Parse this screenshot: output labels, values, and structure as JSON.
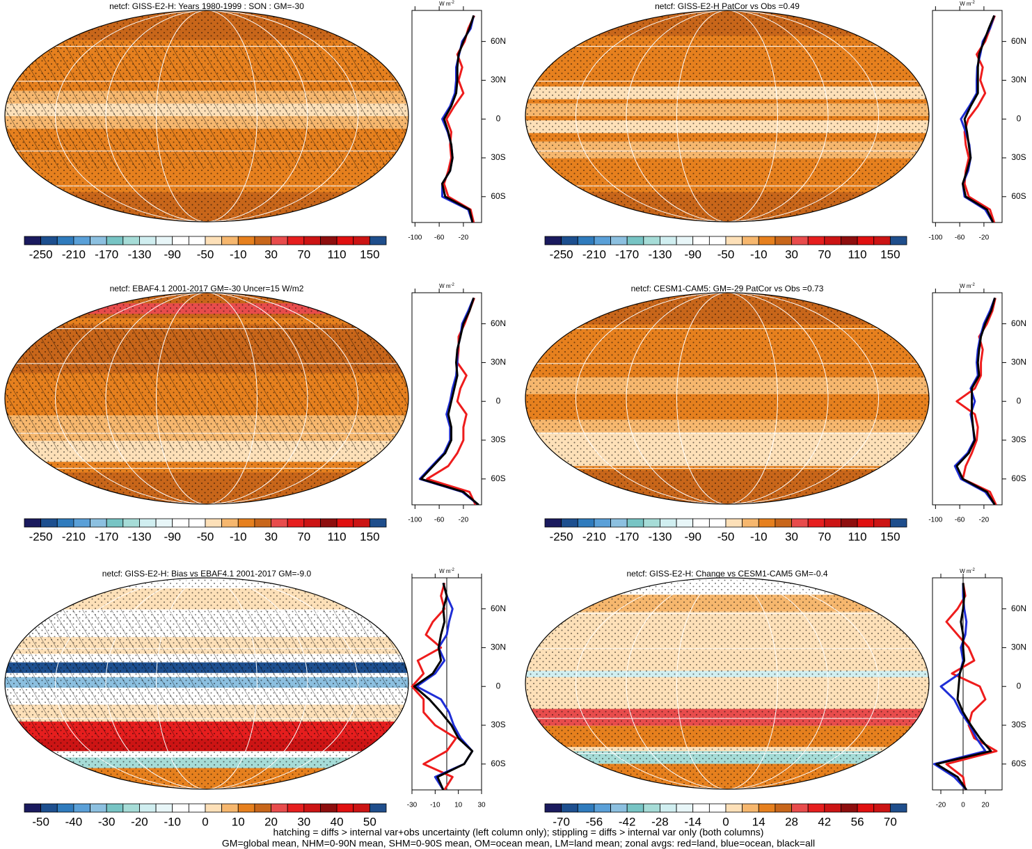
{
  "chart_data": [
    {
      "type": "map",
      "title": "netcf: GISS-E2-H: Years 1980-1999 : SON : GM=-30",
      "colorbar": {
        "lim": [
          -270,
          170
        ],
        "ticks": [
          -250,
          -210,
          -170,
          -130,
          -90,
          -50,
          -10,
          30,
          70,
          110,
          150
        ],
        "colors": [
          "#1a1a5e",
          "#1d4f8f",
          "#2f7bbd",
          "#5aa0d8",
          "#8cc0e0",
          "#77c4c4",
          "#a6dcd7",
          "#d0eef0",
          "#e8f6f8",
          "#ffffff",
          "#ffffff",
          "#fde0b8",
          "#f6b76e",
          "#e6801e",
          "#c8661a",
          "#e84c4c",
          "#e61e1e",
          "#cc1414",
          "#8e0e0e",
          "#e01010",
          "#cc1414",
          "#1f4e8c"
        ]
      },
      "zonal_mean": {
        "type": "line",
        "xlabel": "W m",
        "xlabel_sup": "-2",
        "xlim": [
          -105,
          10
        ],
        "xticks": [
          -100,
          -60,
          -20
        ],
        "ylim": [
          -80,
          84
        ],
        "yticks": [
          {
            "value": 60,
            "label": "60N"
          },
          {
            "value": 30,
            "label": "30N"
          },
          0,
          {
            "value": -30,
            "label": "30S"
          },
          {
            "value": -60,
            "label": "60S"
          }
        ],
        "y": [
          -80,
          -70,
          -60,
          -50,
          -40,
          -30,
          -20,
          -10,
          0,
          10,
          20,
          30,
          40,
          50,
          60,
          70,
          80
        ],
        "series": [
          {
            "name": "land",
            "color": "#ee1c1c",
            "values": [
              -3,
              -8,
              -45,
              -52,
              -45,
              -40,
              -42,
              -40,
              -48,
              -35,
              -20,
              -28,
              -22,
              -30,
              -18,
              -12,
              -2
            ]
          },
          {
            "name": "ocean",
            "color": "#1f2ed6",
            "values": [
              -5,
              -12,
              -55,
              -55,
              -42,
              -38,
              -40,
              -46,
              -55,
              -42,
              -34,
              -32,
              -32,
              -27,
              -22,
              -8,
              -3
            ]
          },
          {
            "name": "all",
            "color": "#000000",
            "values": [
              -5,
              -10,
              -50,
              -55,
              -42,
              -38,
              -40,
              -45,
              -52,
              -40,
              -32,
              -30,
              -30,
              -28,
              -20,
              -10,
              -3
            ]
          }
        ]
      }
    },
    {
      "type": "map",
      "title": "netcf: GISS-E2-H PatCor vs Obs =0.49",
      "colorbar": {
        "lim": [
          -270,
          170
        ],
        "ticks": [
          -250,
          -210,
          -170,
          -130,
          -90,
          -50,
          -10,
          30,
          70,
          110,
          150
        ],
        "colors": [
          "#1a1a5e",
          "#1d4f8f",
          "#2f7bbd",
          "#5aa0d8",
          "#8cc0e0",
          "#77c4c4",
          "#a6dcd7",
          "#d0eef0",
          "#e8f6f8",
          "#ffffff",
          "#ffffff",
          "#fde0b8",
          "#f6b76e",
          "#e6801e",
          "#c8661a",
          "#e84c4c",
          "#e61e1e",
          "#cc1414",
          "#8e0e0e",
          "#e01010",
          "#cc1414",
          "#1f4e8c"
        ]
      },
      "zonal_mean": {
        "type": "line",
        "xlabel": "W m",
        "xlabel_sup": "-2",
        "xlim": [
          -105,
          10
        ],
        "xticks": [
          -100,
          -60,
          -20
        ],
        "ylim": [
          -80,
          84
        ],
        "yticks": [
          {
            "value": 60,
            "label": "60N"
          },
          {
            "value": 30,
            "label": "30N"
          },
          0,
          {
            "value": -30,
            "label": "30S"
          },
          {
            "value": -60,
            "label": "60S"
          }
        ],
        "y": [
          -80,
          -70,
          -60,
          -50,
          -40,
          -30,
          -20,
          -10,
          0,
          10,
          20,
          30,
          40,
          50,
          60,
          70,
          80
        ],
        "series": [
          {
            "name": "land",
            "color": "#ee1c1c",
            "values": [
              -3,
              -10,
              -45,
              -52,
              -50,
              -45,
              -50,
              -52,
              -46,
              -30,
              -18,
              -26,
              -22,
              -32,
              -18,
              -10,
              -2
            ]
          },
          {
            "name": "ocean",
            "color": "#1f2ed6",
            "values": [
              -5,
              -18,
              -52,
              -55,
              -46,
              -42,
              -44,
              -50,
              -58,
              -44,
              -32,
              -32,
              -31,
              -26,
              -22,
              -10,
              -3
            ]
          },
          {
            "name": "all",
            "color": "#000000",
            "values": [
              -5,
              -15,
              -50,
              -55,
              -48,
              -42,
              -45,
              -48,
              -52,
              -42,
              -30,
              -30,
              -30,
              -28,
              -20,
              -12,
              -3
            ]
          }
        ]
      }
    },
    {
      "type": "map",
      "title": "netcf: EBAF4.1 2001-2017 GM=-30 Uncer=15 W/m2",
      "colorbar": {
        "lim": [
          -270,
          170
        ],
        "ticks": [
          -250,
          -210,
          -170,
          -130,
          -90,
          -50,
          -10,
          30,
          70,
          110,
          150
        ],
        "colors": [
          "#1a1a5e",
          "#1d4f8f",
          "#2f7bbd",
          "#5aa0d8",
          "#8cc0e0",
          "#77c4c4",
          "#a6dcd7",
          "#d0eef0",
          "#e8f6f8",
          "#ffffff",
          "#ffffff",
          "#fde0b8",
          "#f6b76e",
          "#e6801e",
          "#c8661a",
          "#e84c4c",
          "#e61e1e",
          "#cc1414",
          "#8e0e0e",
          "#e01010",
          "#cc1414",
          "#1f4e8c"
        ]
      },
      "zonal_mean": {
        "type": "line",
        "xlabel": "W m",
        "xlabel_sup": "-2",
        "xlim": [
          -105,
          10
        ],
        "xticks": [
          -100,
          -60,
          -20
        ],
        "ylim": [
          -80,
          84
        ],
        "yticks": [
          {
            "value": 60,
            "label": "60N"
          },
          {
            "value": 30,
            "label": "30N"
          },
          0,
          {
            "value": -30,
            "label": "30S"
          },
          {
            "value": -60,
            "label": "60S"
          }
        ],
        "y": [
          -80,
          -70,
          -60,
          -50,
          -40,
          -30,
          -20,
          -10,
          0,
          10,
          20,
          30,
          40,
          50,
          60,
          70,
          80
        ],
        "series": [
          {
            "name": "land",
            "color": "#ee1c1c",
            "values": [
              0,
              -10,
              -80,
              -45,
              -30,
              -20,
              -20,
              -15,
              -30,
              -25,
              -15,
              -30,
              -28,
              -28,
              -18,
              -10,
              -2
            ]
          },
          {
            "name": "ocean",
            "color": "#1f2ed6",
            "values": [
              5,
              -22,
              -92,
              -72,
              -52,
              -42,
              -42,
              -48,
              -42,
              -38,
              -32,
              -30,
              -30,
              -25,
              -22,
              -12,
              -3
            ]
          },
          {
            "name": "all",
            "color": "#000000",
            "values": [
              5,
              -20,
              -90,
              -70,
              -50,
              -40,
              -40,
              -45,
              -40,
              -35,
              -30,
              -32,
              -30,
              -25,
              -20,
              -10,
              -3
            ]
          }
        ]
      }
    },
    {
      "type": "map",
      "title": "netcf: CESM1-CAM5: GM=-29 PatCor vs Obs =0.73",
      "colorbar": {
        "lim": [
          -270,
          170
        ],
        "ticks": [
          -250,
          -210,
          -170,
          -130,
          -90,
          -50,
          -10,
          30,
          70,
          110,
          150
        ],
        "colors": [
          "#1a1a5e",
          "#1d4f8f",
          "#2f7bbd",
          "#5aa0d8",
          "#8cc0e0",
          "#77c4c4",
          "#a6dcd7",
          "#d0eef0",
          "#e8f6f8",
          "#ffffff",
          "#ffffff",
          "#fde0b8",
          "#f6b76e",
          "#e6801e",
          "#c8661a",
          "#e84c4c",
          "#e61e1e",
          "#cc1414",
          "#8e0e0e",
          "#e01010",
          "#cc1414",
          "#1f4e8c"
        ]
      },
      "zonal_mean": {
        "type": "line",
        "xlabel": "W m",
        "xlabel_sup": "-2",
        "xlim": [
          -105,
          10
        ],
        "xticks": [
          -100,
          -60,
          -20
        ],
        "ylim": [
          -80,
          84
        ],
        "yticks": [
          {
            "value": 60,
            "label": "60N"
          },
          {
            "value": 30,
            "label": "30N"
          },
          0,
          {
            "value": -30,
            "label": "30S"
          },
          {
            "value": -60,
            "label": "60S"
          }
        ],
        "y": [
          -80,
          -70,
          -60,
          -50,
          -40,
          -30,
          -20,
          -10,
          0,
          10,
          20,
          30,
          40,
          50,
          60,
          70,
          80
        ],
        "series": [
          {
            "name": "land",
            "color": "#ee1c1c",
            "values": [
              0,
              -10,
              -55,
              -50,
              -40,
              -32,
              -30,
              -35,
              -65,
              -35,
              -25,
              -25,
              -22,
              -28,
              -15,
              -6,
              -1
            ]
          },
          {
            "name": "ocean",
            "color": "#1f2ed6",
            "values": [
              -2,
              -18,
              -58,
              -68,
              -47,
              -36,
              -38,
              -42,
              -35,
              -42,
              -30,
              -32,
              -30,
              -26,
              -20,
              -10,
              -2
            ]
          },
          {
            "name": "all",
            "color": "#000000",
            "values": [
              -2,
              -15,
              -55,
              -65,
              -45,
              -35,
              -38,
              -40,
              -40,
              -40,
              -28,
              -30,
              -28,
              -25,
              -18,
              -8,
              -2
            ]
          }
        ]
      }
    },
    {
      "type": "map",
      "title": "netcf: GISS-E2-H: Bias vs EBAF4.1 2001-2017  GM=-9.0",
      "colorbar": {
        "lim": [
          -55,
          55
        ],
        "ticks": [
          -50,
          -40,
          -30,
          -20,
          -10,
          0,
          10,
          20,
          30,
          40,
          50
        ],
        "colors": [
          "#1a1a5e",
          "#1d4f8f",
          "#2f7bbd",
          "#5aa0d8",
          "#8cc0e0",
          "#77c4c4",
          "#a6dcd7",
          "#d0eef0",
          "#e8f6f8",
          "#ffffff",
          "#ffffff",
          "#fde0b8",
          "#f6b76e",
          "#e6801e",
          "#c8661a",
          "#e84c4c",
          "#e61e1e",
          "#cc1414",
          "#8e0e0e",
          "#e01010",
          "#cc1414",
          "#1f4e8c"
        ]
      },
      "zonal_mean": {
        "type": "line",
        "xlabel": "W m",
        "xlabel_sup": "-2",
        "zero_line": true,
        "xlim": [
          -30,
          30
        ],
        "xticks": [
          -30,
          -10,
          10,
          30
        ],
        "ylim": [
          -80,
          84
        ],
        "yticks": [
          {
            "value": 60,
            "label": "60N"
          },
          {
            "value": 30,
            "label": "30N"
          },
          0,
          {
            "value": -30,
            "label": "30S"
          },
          {
            "value": -60,
            "label": "60S"
          }
        ],
        "y": [
          -80,
          -70,
          -60,
          -50,
          -40,
          -30,
          -20,
          -10,
          0,
          10,
          20,
          30,
          40,
          50,
          60,
          70,
          80
        ],
        "series": [
          {
            "name": "land",
            "color": "#ee1c1c",
            "values": [
              -2,
              5,
              -20,
              0,
              8,
              -10,
              -20,
              -20,
              -30,
              -20,
              -25,
              -5,
              -18,
              -12,
              -2,
              -5,
              -2
            ]
          },
          {
            "name": "ocean",
            "color": "#1f2ed6",
            "values": [
              -3,
              -10,
              15,
              22,
              12,
              6,
              2,
              -5,
              -26,
              -10,
              -2,
              -7,
              0,
              2,
              5,
              0,
              -3
            ]
          },
          {
            "name": "all",
            "color": "#000000",
            "values": [
              -3,
              -8,
              15,
              22,
              10,
              4,
              -5,
              -15,
              -28,
              -12,
              -5,
              -7,
              -5,
              -2,
              -3,
              0,
              -3
            ]
          }
        ]
      }
    },
    {
      "type": "map",
      "title": "netcf: GISS-E2-H: Change vs CESM1-CAM5 GM=-0.4",
      "colorbar": {
        "lim": [
          -77,
          77
        ],
        "ticks": [
          -70,
          -56,
          -42,
          -28,
          -14,
          0,
          14,
          28,
          42,
          56,
          70
        ],
        "colors": [
          "#1a1a5e",
          "#1d4f8f",
          "#2f7bbd",
          "#5aa0d8",
          "#8cc0e0",
          "#77c4c4",
          "#a6dcd7",
          "#d0eef0",
          "#e8f6f8",
          "#ffffff",
          "#ffffff",
          "#fde0b8",
          "#f6b76e",
          "#e6801e",
          "#c8661a",
          "#e84c4c",
          "#e61e1e",
          "#cc1414",
          "#8e0e0e",
          "#e01010",
          "#cc1414",
          "#1f4e8c"
        ]
      },
      "zonal_mean": {
        "type": "line",
        "xlabel": "W m",
        "xlabel_sup": "-2",
        "zero_line": true,
        "xlim": [
          -27.5,
          35
        ],
        "xticks": [
          -20,
          0,
          20
        ],
        "ylim": [
          -80,
          84
        ],
        "yticks": [
          {
            "value": 60,
            "label": "60N"
          },
          {
            "value": 30,
            "label": "30N"
          },
          0,
          {
            "value": -30,
            "label": "30S"
          },
          {
            "value": -60,
            "label": "60S"
          }
        ],
        "y": [
          -80,
          -70,
          -60,
          -50,
          -40,
          -30,
          -20,
          -10,
          0,
          10,
          20,
          30,
          40,
          50,
          60,
          70,
          80
        ],
        "series": [
          {
            "name": "land",
            "color": "#ee1c1c",
            "values": [
              2,
              0,
              -15,
              30,
              10,
              5,
              8,
              20,
              15,
              -10,
              10,
              5,
              -5,
              -15,
              -5,
              2,
              0
            ]
          },
          {
            "name": "ocean",
            "color": "#1f2ed6",
            "values": [
              3,
              -8,
              -26,
              20,
              12,
              6,
              -2,
              -8,
              -20,
              -3,
              0,
              -2,
              2,
              3,
              1,
              0,
              0
            ]
          },
          {
            "name": "all",
            "color": "#000000",
            "values": [
              3,
              -5,
              -24,
              25,
              15,
              7,
              0,
              -5,
              -4,
              -3,
              1,
              0,
              0,
              -2,
              0,
              1,
              0
            ]
          }
        ]
      }
    }
  ],
  "notes": [
    "hatching = diffs > internal var+obs uncertainty (left column only); stippling = diffs > internal var only (both columns)",
    "GM=global mean, NHM=0-90N mean, SHM=0-90S mean, OM=ocean mean, LM=land mean; zonal avgs: red=land, blue=ocean, black=all"
  ]
}
